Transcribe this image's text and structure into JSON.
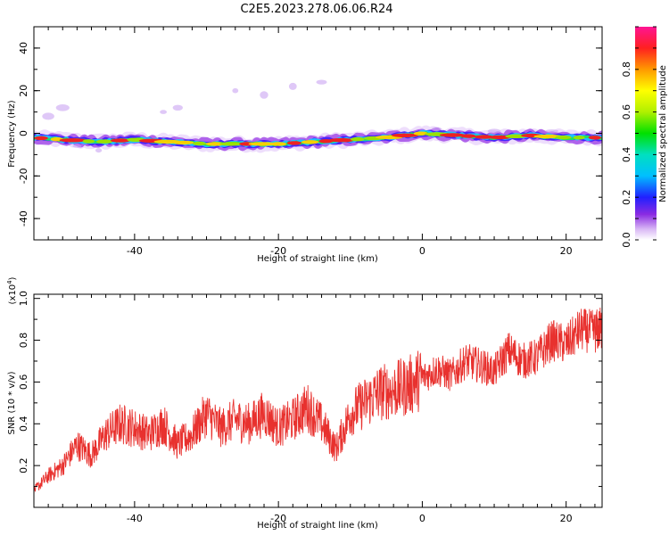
{
  "title": "C2E5.2023.278.06.06.R24",
  "chart_data": [
    {
      "type": "heatmap",
      "xlabel": "Height of straight line (km)",
      "ylabel": "Frequency (Hz)",
      "xlim": [
        -54,
        25
      ],
      "ylim": [
        -50,
        50
      ],
      "xticks": [
        "-40",
        "-20",
        "0",
        "20"
      ],
      "yticks": [
        "40",
        "20",
        "0",
        "-20",
        "-40"
      ],
      "ridge": {
        "x": [
          -54,
          -50,
          -45,
          -40,
          -35,
          -30,
          -25,
          -20,
          -15,
          -10,
          -5,
          0,
          5,
          10,
          15,
          20,
          24
        ],
        "frequency": [
          -2,
          -3,
          -4,
          -3,
          -4,
          -5,
          -5,
          -5,
          -4,
          -3,
          -2,
          0,
          -1,
          -2,
          -1,
          -2,
          -2
        ]
      },
      "colorbar": {
        "label": "Normalized spectral amplitude",
        "range": [
          0,
          1
        ],
        "ticks": [
          "0.0",
          "0.2",
          "0.4",
          "0.6",
          "0.8"
        ]
      }
    },
    {
      "type": "line",
      "xlabel": "Height of straight line (km)",
      "ylabel": "SNR (10 * v/v)",
      "multiplier_label": "(x10",
      "multiplier_exponent": "4",
      "xlim": [
        -54,
        25
      ],
      "ylim": [
        0,
        1.02
      ],
      "xticks": [
        "-40",
        "-20",
        "0",
        "20"
      ],
      "yticks": [
        "0.2",
        "0.4",
        "0.6",
        "0.8",
        "1.0"
      ],
      "series": [
        {
          "name": "SNR",
          "color": "#e8312e",
          "x": [
            -54,
            -52,
            -50,
            -48,
            -46,
            -44,
            -42,
            -40,
            -38,
            -36,
            -34,
            -32,
            -30,
            -28,
            -26,
            -24,
            -22,
            -20,
            -18,
            -16,
            -14,
            -12,
            -10,
            -8,
            -6,
            -4,
            -2,
            0,
            2,
            4,
            6,
            8,
            10,
            12,
            14,
            16,
            18,
            20,
            22,
            24,
            25
          ],
          "values": [
            0.08,
            0.15,
            0.2,
            0.3,
            0.25,
            0.35,
            0.4,
            0.38,
            0.35,
            0.4,
            0.3,
            0.35,
            0.45,
            0.38,
            0.42,
            0.4,
            0.45,
            0.38,
            0.42,
            0.48,
            0.4,
            0.28,
            0.45,
            0.5,
            0.55,
            0.56,
            0.58,
            0.62,
            0.66,
            0.63,
            0.7,
            0.68,
            0.65,
            0.75,
            0.7,
            0.72,
            0.8,
            0.78,
            0.85,
            0.84,
            0.86
          ]
        }
      ]
    }
  ],
  "colors": {
    "snr_line": "#e8312e",
    "ridge_core": "#e02020"
  }
}
